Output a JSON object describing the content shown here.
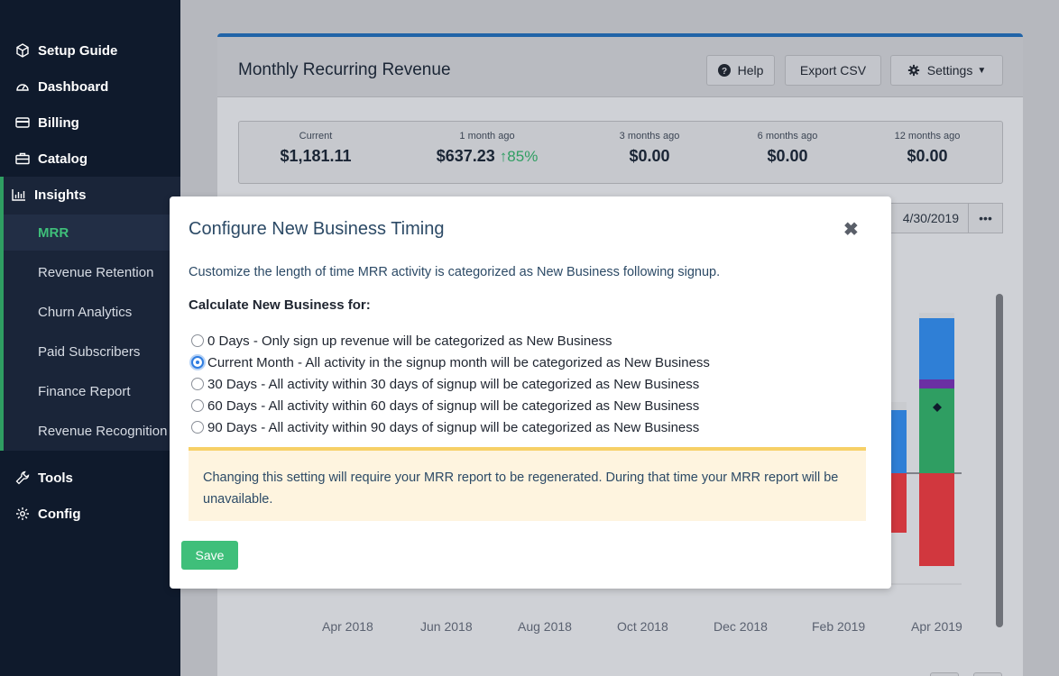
{
  "sidebar": {
    "items": [
      {
        "label": "Setup Guide",
        "icon": "cube-icon"
      },
      {
        "label": "Dashboard",
        "icon": "gauge-icon"
      },
      {
        "label": "Billing",
        "icon": "credit-card-icon"
      },
      {
        "label": "Catalog",
        "icon": "briefcase-icon"
      },
      {
        "label": "Insights",
        "icon": "bar-chart-icon"
      },
      {
        "label": "Tools",
        "icon": "wrench-icon"
      },
      {
        "label": "Config",
        "icon": "gear-icon"
      }
    ],
    "insights_sub": [
      "MRR",
      "Revenue Retention",
      "Churn Analytics",
      "Paid Subscribers",
      "Finance Report",
      "Revenue Recognition"
    ],
    "active_sub": "MRR",
    "accent_color": "#2f9e62"
  },
  "card": {
    "title": "Monthly Recurring Revenue",
    "help_label": "Help",
    "export_label": "Export CSV",
    "settings_label": "Settings",
    "accent_color": "#2164a8"
  },
  "stats": [
    {
      "label": "Current",
      "value": "$1,181.11",
      "change": ""
    },
    {
      "label": "1 month ago",
      "value": "$637.23",
      "change": "85%"
    },
    {
      "label": "3 months ago",
      "value": "$0.00",
      "change": ""
    },
    {
      "label": "6 months ago",
      "value": "$0.00",
      "change": ""
    },
    {
      "label": "12 months ago",
      "value": "$0.00",
      "change": ""
    }
  ],
  "date_range": "4/30/2019",
  "more_label": "•••",
  "chart_data": {
    "type": "bar",
    "categories": [
      "Apr 2018",
      "Jun 2018",
      "Aug 2018",
      "Oct 2018",
      "Dec 2018",
      "Feb 2019",
      "Apr 2019"
    ],
    "series_colors": {
      "blue": "#2f7fd6",
      "purple": "#6b2fa3",
      "green": "#2f9e62",
      "red": "#d1373e",
      "grey": "#c9cbcf"
    }
  },
  "modal": {
    "title": "Configure New Business Timing",
    "close": "✖",
    "description": "Customize the length of time MRR activity is categorized as New Business following signup.",
    "subtitle": "Calculate New Business for:",
    "options": [
      "0 Days - Only sign up revenue will be categorized as New Business",
      "Current Month - All activity in the signup month will be categorized as New Business",
      "30 Days - All activity within 30 days of signup will be categorized as New Business",
      "60 Days - All activity within 60 days of signup will be categorized as New Business",
      "90 Days - All activity within 90 days of signup will be categorized as New Business"
    ],
    "selected_index": 1,
    "alert": "Changing this setting will require your MRR report to be regenerated. During that time your MRR report will be unavailable.",
    "save_label": "Save",
    "save_color": "#3fbf7a",
    "alert_border_color": "#f7d067"
  }
}
